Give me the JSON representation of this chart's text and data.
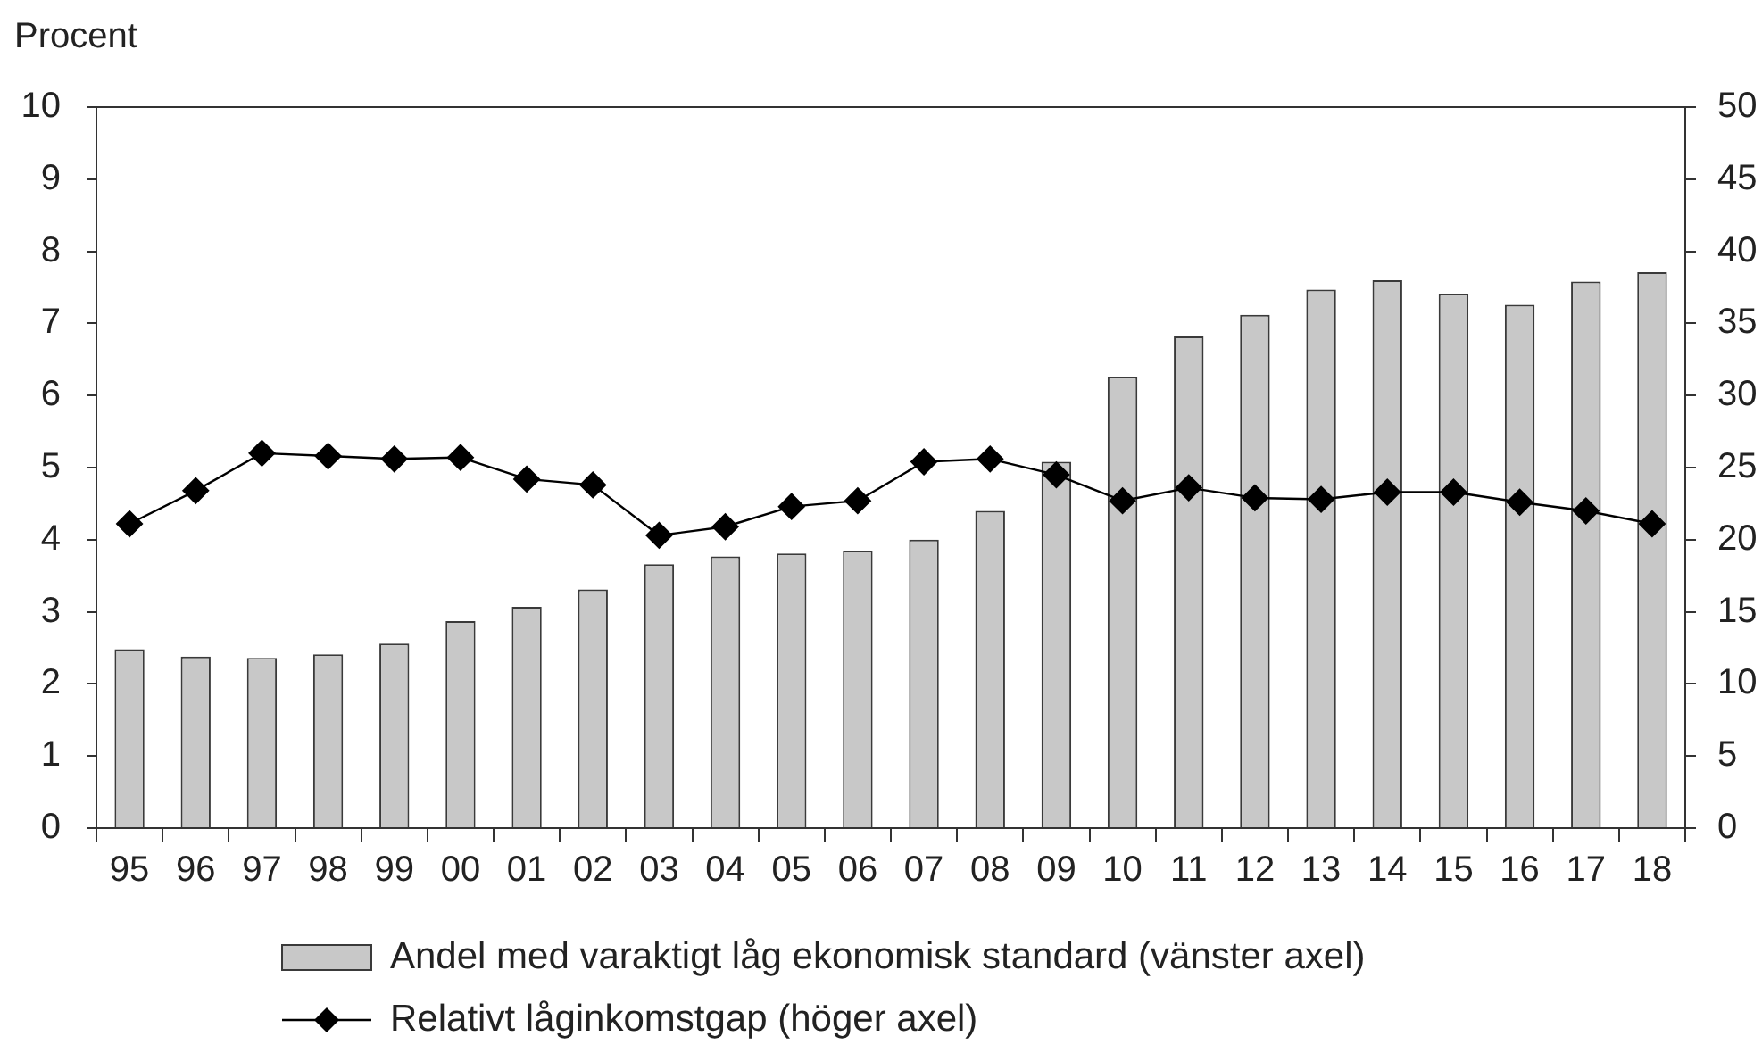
{
  "chart_data": {
    "type": "bar",
    "ylabel": "Procent",
    "categories": [
      "95",
      "96",
      "97",
      "98",
      "99",
      "00",
      "01",
      "02",
      "03",
      "04",
      "05",
      "06",
      "07",
      "08",
      "09",
      "10",
      "11",
      "12",
      "13",
      "14",
      "15",
      "16",
      "17",
      "18"
    ],
    "series": [
      {
        "name": "Andel med varaktigt låg ekonomisk standard (vänster axel)",
        "color": "#c8c8c8",
        "values": [
          2.48,
          2.38,
          2.36,
          2.41,
          2.56,
          2.87,
          3.07,
          3.31,
          3.66,
          3.77,
          3.81,
          3.85,
          4.0,
          4.4,
          5.08,
          6.26,
          6.82,
          7.12,
          7.47,
          7.6,
          7.41,
          7.26,
          7.58,
          7.71
        ]
      },
      {
        "name": "Relativt låginkomstgap (höger axel)",
        "type": "line",
        "axis": "y2",
        "color": "#000000",
        "values": [
          21.1,
          23.4,
          26.0,
          25.8,
          25.6,
          25.7,
          24.2,
          23.8,
          20.3,
          20.9,
          22.3,
          22.7,
          25.4,
          25.6,
          24.5,
          22.7,
          23.6,
          22.9,
          22.8,
          23.3,
          23.3,
          22.6,
          22.0,
          21.1
        ]
      }
    ],
    "ylim": [
      0,
      10
    ],
    "yticks": [
      0,
      1,
      2,
      3,
      4,
      5,
      6,
      7,
      8,
      9,
      10
    ],
    "y2lim": [
      0,
      50
    ],
    "y2ticks": [
      0,
      5,
      10,
      15,
      20,
      25,
      30,
      35,
      40,
      45,
      50
    ],
    "grid": false,
    "legend": "bottom",
    "marker": "diamond",
    "line_style": "solid"
  }
}
